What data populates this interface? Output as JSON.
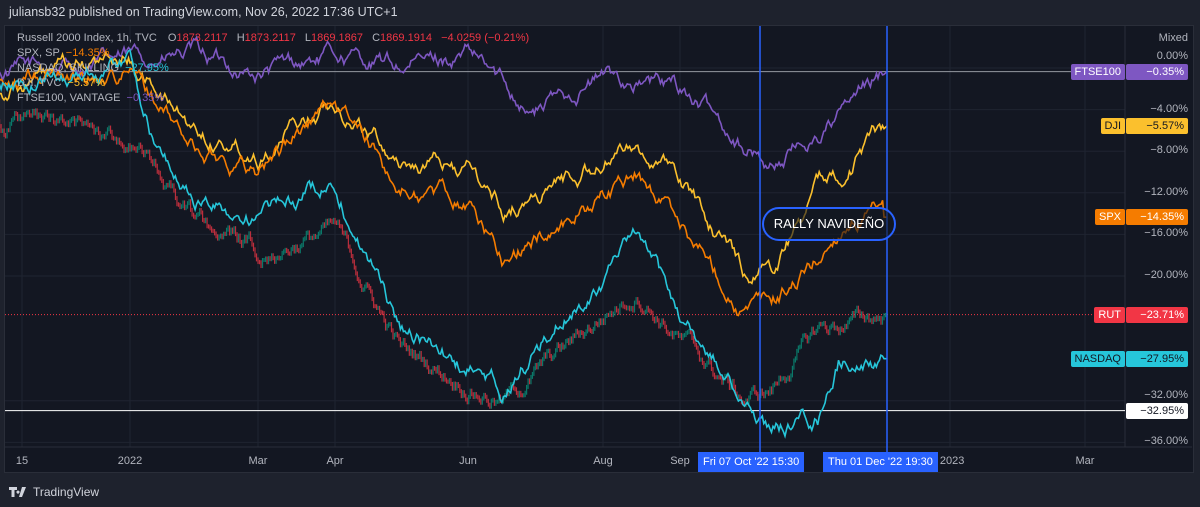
{
  "header": {
    "publish_line": "juliansb32 published on TradingView.com, Nov 26, 2022 17:36 UTC+1"
  },
  "legend": {
    "main": {
      "name": "Russell 2000 Index, 1h, TVC",
      "o_label": "O",
      "o": "1873.2117",
      "h_label": "H",
      "h": "1873.2117",
      "l_label": "L",
      "l": "1869.1867",
      "c_label": "C",
      "c": "1869.1914",
      "change": "−4.0259 (−0.21%)"
    },
    "items": [
      {
        "name": "SPX, SP",
        "value": "−14.35%",
        "color": "#f57c00"
      },
      {
        "name": "NASDAQ, SKILLING",
        "value": "−27.95%",
        "color": "#26c6da"
      },
      {
        "name": "DJI, TVC",
        "value": "−5.57%",
        "color": "#fbc02d"
      },
      {
        "name": "FTSE100, VANTAGE",
        "value": "−0.35%",
        "color": "#7e57c2"
      }
    ]
  },
  "scale_mode": "Mixed",
  "annotation": "RALLY NAVIDEÑO",
  "crosshair": {
    "start_label": "Fri 07 Oct '22   15:30",
    "end_label": "Thu 01 Dec '22   19:30",
    "start": "2022-10-07",
    "end": "2022-12-01"
  },
  "branding": {
    "logo_text": "TradingView"
  },
  "chart_data": {
    "type": "line",
    "ylabel": "",
    "ylim": [
      -37,
      1.5
    ],
    "y_ticks": [
      "0.00%",
      "−4.00%",
      "−8.00%",
      "−12.00%",
      "−16.00%",
      "−20.00%",
      "−32.00%",
      "−36.00%"
    ],
    "y_tick_values": [
      0,
      -4,
      -8,
      -12,
      -16,
      -20,
      -32,
      -36
    ],
    "x_ticks": [
      {
        "label": "15",
        "date": "2021-12-15"
      },
      {
        "label": "2022",
        "date": "2022-01-03"
      },
      {
        "label": "Mar",
        "date": "2022-03-01"
      },
      {
        "label": "Apr",
        "date": "2022-04-01"
      },
      {
        "label": "Jun",
        "date": "2022-06-01"
      },
      {
        "label": "Aug",
        "date": "2022-08-01"
      },
      {
        "label": "Sep",
        "date": "2022-09-01"
      },
      {
        "label": "2023",
        "date": "2023-01-01"
      },
      {
        "label": "Mar",
        "date": "2023-03-01"
      }
    ],
    "grid": true,
    "series": [
      {
        "name": "FTSE100",
        "last": "−0.35%",
        "last_value": -0.35,
        "color": "#7e57c2",
        "text_color": "#ffffff",
        "points": [
          [
            "2021-12-10",
            -0.5
          ],
          [
            "2022-01-03",
            0.8
          ],
          [
            "2022-02-01",
            1.2
          ],
          [
            "2022-03-01",
            -0.7
          ],
          [
            "2022-04-01",
            1.2
          ],
          [
            "2022-05-01",
            0
          ],
          [
            "2022-06-01",
            1.2
          ],
          [
            "2022-07-01",
            -4
          ],
          [
            "2022-08-01",
            -0.7
          ],
          [
            "2022-09-01",
            -2
          ],
          [
            "2022-10-01",
            -7.4
          ],
          [
            "2022-10-12",
            -9.3
          ],
          [
            "2022-11-01",
            -6.4
          ],
          [
            "2022-12-01",
            -0.35
          ]
        ]
      },
      {
        "name": "DJI",
        "last": "−5.57%",
        "last_value": -5.57,
        "color": "#fbc02d",
        "text_color": "#131722",
        "points": [
          [
            "2021-12-10",
            -2
          ],
          [
            "2022-01-03",
            0.8
          ],
          [
            "2022-02-01",
            -6
          ],
          [
            "2022-03-01",
            -7.9
          ],
          [
            "2022-04-01",
            -3
          ],
          [
            "2022-05-01",
            -8.8
          ],
          [
            "2022-06-01",
            -9.8
          ],
          [
            "2022-06-17",
            -13.7
          ],
          [
            "2022-08-15",
            -7.4
          ],
          [
            "2022-09-01",
            -10.8
          ],
          [
            "2022-09-30",
            -19.4
          ],
          [
            "2022-10-12",
            -19
          ],
          [
            "2022-11-01",
            -11.7
          ],
          [
            "2022-12-01",
            -5.57
          ]
        ]
      },
      {
        "name": "SPX",
        "last": "−14.35%",
        "last_value": -14.35,
        "color": "#f57c00",
        "text_color": "#ffffff",
        "points": [
          [
            "2021-12-10",
            -1.5
          ],
          [
            "2022-01-03",
            -0.2
          ],
          [
            "2022-02-01",
            -7.9
          ],
          [
            "2022-03-01",
            -9.8
          ],
          [
            "2022-04-01",
            -3
          ],
          [
            "2022-05-01",
            -11.7
          ],
          [
            "2022-06-01",
            -12.7
          ],
          [
            "2022-06-17",
            -18.5
          ],
          [
            "2022-08-15",
            -10.3
          ],
          [
            "2022-09-01",
            -14.6
          ],
          [
            "2022-09-30",
            -23.3
          ],
          [
            "2022-10-12",
            -22.8
          ],
          [
            "2022-11-01",
            -18.5
          ],
          [
            "2022-11-15",
            -14.2
          ],
          [
            "2022-12-01",
            -14.35
          ]
        ]
      },
      {
        "name": "NASDAQ",
        "last": "−27.95%",
        "last_value": -27.95,
        "color": "#26c6da",
        "text_color": "#131722",
        "points": [
          [
            "2021-12-10",
            -2
          ],
          [
            "2022-01-03",
            0.8
          ],
          [
            "2022-01-15",
            -7.9
          ],
          [
            "2022-02-01",
            -12.7
          ],
          [
            "2022-03-01",
            -14.6
          ],
          [
            "2022-04-01",
            -10.8
          ],
          [
            "2022-05-01",
            -25
          ],
          [
            "2022-06-17",
            -31
          ],
          [
            "2022-08-15",
            -16.5
          ],
          [
            "2022-09-01",
            -24
          ],
          [
            "2022-09-30",
            -32
          ],
          [
            "2022-10-12",
            -34.8
          ],
          [
            "2022-11-01",
            -33.8
          ],
          [
            "2022-11-10",
            -28
          ],
          [
            "2022-12-01",
            -27.95
          ]
        ]
      },
      {
        "name": "RUT",
        "last": "−23.71%",
        "last_value": -23.71,
        "color": "#f23645",
        "text_color": "#ffffff",
        "style": "candles",
        "points": [
          [
            "2021-12-10",
            -4.5
          ],
          [
            "2022-01-03",
            -6.9
          ],
          [
            "2022-02-01",
            -14.6
          ],
          [
            "2022-03-01",
            -17.5
          ],
          [
            "2022-04-01",
            -15.6
          ],
          [
            "2022-05-01",
            -27
          ],
          [
            "2022-06-17",
            -32
          ],
          [
            "2022-08-15",
            -21.3
          ],
          [
            "2022-09-01",
            -26
          ],
          [
            "2022-09-30",
            -32
          ],
          [
            "2022-10-12",
            -31
          ],
          [
            "2022-11-01",
            -25.2
          ],
          [
            "2022-12-01",
            -23.71
          ]
        ]
      }
    ],
    "price_line": {
      "label": "−32.95%",
      "value": -32.95
    }
  }
}
